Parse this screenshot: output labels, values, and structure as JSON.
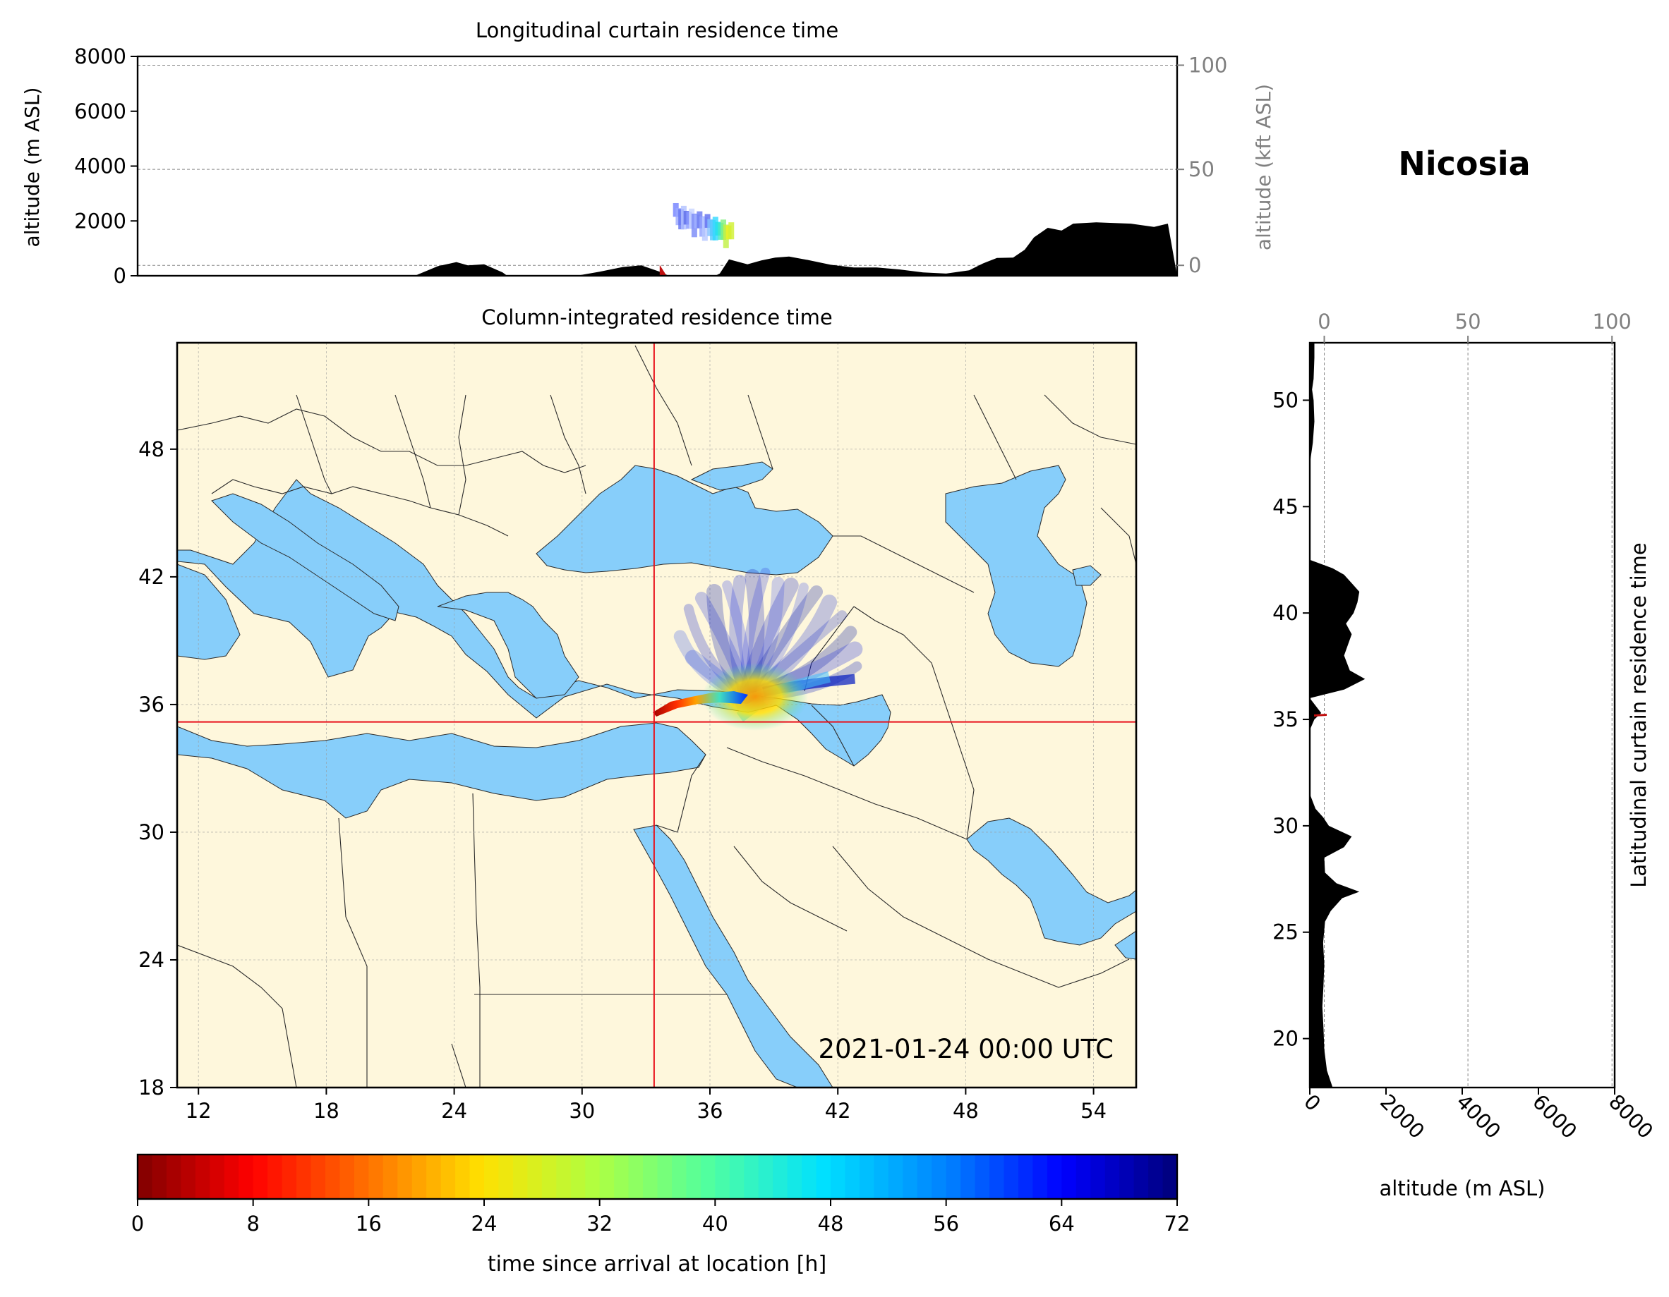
{
  "location": "Nicosia",
  "timestamp": "2021-01-24 00:00 UTC",
  "colors": {
    "sea": "#87cefa",
    "land": "#fef7dc",
    "crosshair": "#e8101a",
    "terrain": "#000000"
  },
  "chart_data": [
    {
      "type": "area",
      "title": "Longitudinal curtain residence time",
      "ylabel": "altitude (m ASL)",
      "ylabel_right": "altitude (kft ASL)",
      "yticks": [
        "0",
        "2000",
        "4000",
        "6000",
        "8000"
      ],
      "yticks_right": [
        "0",
        "50",
        "100"
      ],
      "ylim": [
        0,
        8000
      ],
      "xlim": [
        11,
        56
      ],
      "series": [
        {
          "x": [
            11,
            23,
            24,
            24.8,
            25.3,
            26,
            26.8,
            27,
            30,
            31,
            32,
            32.8,
            33.6,
            34,
            36,
            36.2,
            36.6,
            37.4,
            38,
            38.6,
            39.2,
            40,
            41,
            42,
            43,
            44,
            45,
            46,
            47,
            47.6,
            48.2,
            48.9,
            49.4,
            49.8,
            50.4,
            51,
            51.5,
            52.5,
            54,
            55,
            55.6,
            56
          ],
          "y": [
            0,
            0,
            350,
            500,
            380,
            420,
            120,
            0,
            0,
            150,
            320,
            380,
            150,
            0,
            0,
            80,
            600,
            420,
            560,
            660,
            700,
            580,
            400,
            300,
            300,
            230,
            120,
            80,
            200,
            450,
            650,
            660,
            950,
            1400,
            1750,
            1650,
            1900,
            1950,
            1900,
            1780,
            1900,
            0
          ]
        }
      ],
      "trajectory_band": {
        "lon_range": [
          34.3,
          36.7
        ],
        "alt_range": [
          1000,
          2600
        ]
      }
    },
    {
      "type": "heatmap",
      "title": "Column-integrated residence time",
      "xticks": [
        "12",
        "18",
        "24",
        "30",
        "36",
        "42",
        "48",
        "54"
      ],
      "yticks": [
        "18",
        "24",
        "30",
        "36",
        "42",
        "48"
      ],
      "xlim": [
        11,
        56
      ],
      "ylim": [
        18,
        53
      ],
      "station": {
        "lon": 33.38,
        "lat": 35.18
      },
      "plume": {
        "source_lon": 33.4,
        "source_lat": 35.2,
        "core_lon": 37.7,
        "core_lat": 36.4
      }
    },
    {
      "type": "area",
      "title": "Latitudinal curtain residence time",
      "xlabel": "altitude (m ASL)",
      "xticks": [
        "0",
        "2000",
        "4000",
        "6000",
        "8000"
      ],
      "xticks_top": [
        "0",
        "50",
        "100"
      ],
      "yticks": [
        "20",
        "25",
        "30",
        "35",
        "40",
        "45",
        "50"
      ],
      "ylim": [
        17.7,
        52.7
      ],
      "xlim": [
        0,
        8000
      ],
      "series": [
        {
          "y": [
            17.7,
            18.5,
            19.5,
            20.5,
            21.5,
            22.5,
            23.5,
            24.5,
            25.5,
            26,
            26.6,
            26.9,
            27.3,
            27.8,
            28.5,
            29,
            29.5,
            30,
            30.4,
            30.8,
            31.5,
            32.5,
            33.5,
            34.5,
            35,
            35.3,
            36,
            36.4,
            36.9,
            37.3,
            38,
            38.5,
            39,
            39.5,
            40,
            40.5,
            41,
            41.4,
            41.8,
            42.1,
            42.5,
            44,
            45,
            46,
            47,
            48,
            49,
            50,
            50.5,
            51,
            52,
            52.7
          ],
          "x": [
            600,
            450,
            380,
            360,
            330,
            360,
            380,
            350,
            400,
            550,
            850,
            1300,
            700,
            400,
            380,
            900,
            1100,
            500,
            350,
            150,
            0,
            0,
            0,
            0,
            120,
            300,
            0,
            900,
            1450,
            1050,
            900,
            1000,
            1100,
            950,
            1150,
            1250,
            1300,
            1100,
            900,
            600,
            0,
            0,
            0,
            0,
            0,
            80,
            120,
            100,
            60,
            100,
            120,
            120
          ]
        }
      ]
    },
    {
      "type": "heatmap",
      "title": "",
      "xlabel": "time since arrival at location [h]",
      "ticks": [
        "0",
        "8",
        "16",
        "24",
        "32",
        "40",
        "48",
        "56",
        "64",
        "72"
      ],
      "range": [
        0,
        72
      ],
      "colormap": "jet"
    }
  ]
}
